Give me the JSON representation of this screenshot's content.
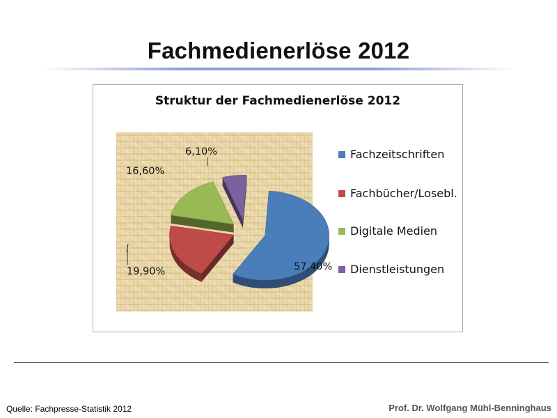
{
  "slide": {
    "title": "Fachmedienerlöse 2012",
    "source": "Quelle:  Fachpresse-Statistik 2012",
    "author": "Prof. Dr. Wolfgang Mühl-Benninghaus"
  },
  "chart_data": {
    "type": "pie",
    "title": "Struktur der Fachmedienerlöse 2012",
    "style": "3d-exploded",
    "legend_position": "right",
    "categories": [
      "Fachzeitschriften",
      "Fachbücher/Losebl.",
      "Digitale Medien",
      "Dienstleistungen"
    ],
    "values": [
      57.4,
      19.9,
      16.6,
      6.1
    ],
    "data_labels": [
      "57,40%",
      "19,90%",
      "16,60%",
      "6,10%"
    ],
    "colors": [
      "#4a7ebb",
      "#be4b48",
      "#98b954",
      "#7d60a0"
    ]
  }
}
